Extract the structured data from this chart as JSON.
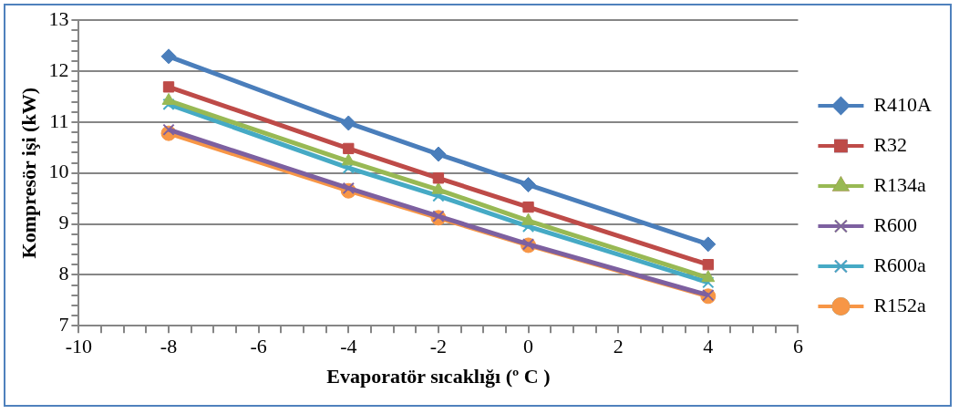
{
  "chart_data": {
    "type": "line",
    "xlabel": "Evaporatör sıcaklığı (º C )",
    "ylabel": "Kompresör işi (kW)",
    "x": [
      -8,
      -4,
      -2,
      0,
      4
    ],
    "xlim": [
      -10,
      6
    ],
    "xticks": [
      -10,
      {
        "value": -9.5,
        "label": null
      },
      {
        "value": -9,
        "label": null
      },
      {
        "value": -8.5,
        "label": null
      },
      -8,
      {
        "value": -7.5,
        "label": null
      },
      {
        "value": -7,
        "label": null
      },
      {
        "value": -6.5,
        "label": null
      },
      -6,
      {
        "value": -5.5,
        "label": null
      },
      {
        "value": -5,
        "label": null
      },
      {
        "value": -4.5,
        "label": null
      },
      -4,
      {
        "value": -3.5,
        "label": null
      },
      {
        "value": -3,
        "label": null
      },
      {
        "value": -2.5,
        "label": null
      },
      -2,
      {
        "value": -1.5,
        "label": null
      },
      {
        "value": -1,
        "label": null
      },
      {
        "value": -0.5,
        "label": null
      },
      0,
      {
        "value": 0.5,
        "label": null
      },
      {
        "value": 1,
        "label": null
      },
      {
        "value": 1.5,
        "label": null
      },
      2,
      {
        "value": 2.5,
        "label": null
      },
      {
        "value": 3,
        "label": null
      },
      {
        "value": 3.5,
        "label": null
      },
      4,
      {
        "value": 4.5,
        "label": null
      },
      {
        "value": 5,
        "label": null
      },
      {
        "value": 5.5,
        "label": null
      },
      6
    ],
    "ylim": [
      7,
      13
    ],
    "yticks": [
      7,
      {
        "value": 7.2,
        "label": null
      },
      {
        "value": 7.4,
        "label": null
      },
      {
        "value": 7.6,
        "label": null
      },
      {
        "value": 7.8,
        "label": null
      },
      8,
      {
        "value": 8.2,
        "label": null
      },
      {
        "value": 8.4,
        "label": null
      },
      {
        "value": 8.6,
        "label": null
      },
      {
        "value": 8.8,
        "label": null
      },
      9,
      {
        "value": 9.2,
        "label": null
      },
      {
        "value": 9.4,
        "label": null
      },
      {
        "value": 9.6,
        "label": null
      },
      {
        "value": 9.8,
        "label": null
      },
      10,
      {
        "value": 10.2,
        "label": null
      },
      {
        "value": 10.4,
        "label": null
      },
      {
        "value": 10.6,
        "label": null
      },
      {
        "value": 10.8,
        "label": null
      },
      11,
      {
        "value": 11.2,
        "label": null
      },
      {
        "value": 11.4,
        "label": null
      },
      {
        "value": 11.6,
        "label": null
      },
      {
        "value": 11.8,
        "label": null
      },
      12,
      {
        "value": 12.2,
        "label": null
      },
      {
        "value": 12.4,
        "label": null
      },
      {
        "value": 12.6,
        "label": null
      },
      {
        "value": 12.8,
        "label": null
      },
      13
    ],
    "grid": "y",
    "legend": "right",
    "line_style": "solid",
    "series": [
      {
        "name": "R410A",
        "color": "#4a7ebb",
        "marker": "diamond",
        "values": [
          12.29,
          10.98,
          10.37,
          9.77,
          8.6
        ]
      },
      {
        "name": "R32",
        "color": "#be4b48",
        "marker": "square",
        "values": [
          11.69,
          10.48,
          9.9,
          9.33,
          8.2
        ]
      },
      {
        "name": "R134a",
        "color": "#98b954",
        "marker": "triangle",
        "values": [
          11.42,
          10.23,
          9.67,
          9.06,
          7.94
        ]
      },
      {
        "name": "R600",
        "color": "#7d60a0",
        "marker": "cross",
        "values": [
          10.85,
          9.7,
          9.15,
          8.6,
          7.6
        ]
      },
      {
        "name": "R600a",
        "color": "#46aac5",
        "marker": "cross",
        "values": [
          11.35,
          10.1,
          9.55,
          8.95,
          7.85
        ]
      },
      {
        "name": "R152a",
        "color": "#f79646",
        "marker": "circle",
        "values": [
          10.78,
          9.65,
          9.12,
          8.58,
          7.58
        ]
      }
    ]
  }
}
